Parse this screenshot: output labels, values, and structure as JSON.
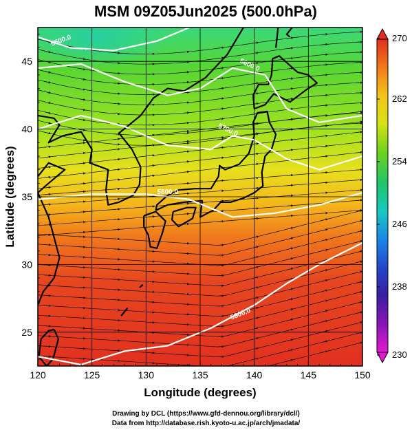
{
  "title": "MSM 09Z05Jun2025 (500.0hPa)",
  "axes": {
    "xlabel": "Longitude (degrees)",
    "ylabel": "Latitude  (degrees)",
    "xlim": [
      120,
      150
    ],
    "ylim": [
      22.5,
      47.5
    ],
    "x_ticks": [
      "120",
      "125",
      "130",
      "135",
      "140",
      "145",
      "150"
    ],
    "y_ticks": [
      "25",
      "30",
      "35",
      "40",
      "45"
    ],
    "grid": true
  },
  "colorbar": {
    "range": [
      230,
      270
    ],
    "labels": [
      "270",
      "262",
      "254",
      "246",
      "238",
      "230"
    ],
    "colors": [
      "#e0301e",
      "#f07a1c",
      "#f3c51a",
      "#d6e21a",
      "#6fd21f",
      "#20c46a",
      "#19c9c0",
      "#1a86e6",
      "#2346c9",
      "#3a1fa0",
      "#8a16b5",
      "#e01ad0"
    ]
  },
  "contours": [
    {
      "label": "5500.0"
    },
    {
      "label": "5600.0"
    },
    {
      "label": "5700.0"
    },
    {
      "label": "5800.0"
    },
    {
      "label": "5900.0"
    }
  ],
  "credits": {
    "line1": "Drawing by DCL (https://www.gfd-dennou.org/library/dcl/)",
    "line2": "Data from http://database.rish.kyoto-u.ac.jp/arch/jmadata/"
  }
}
